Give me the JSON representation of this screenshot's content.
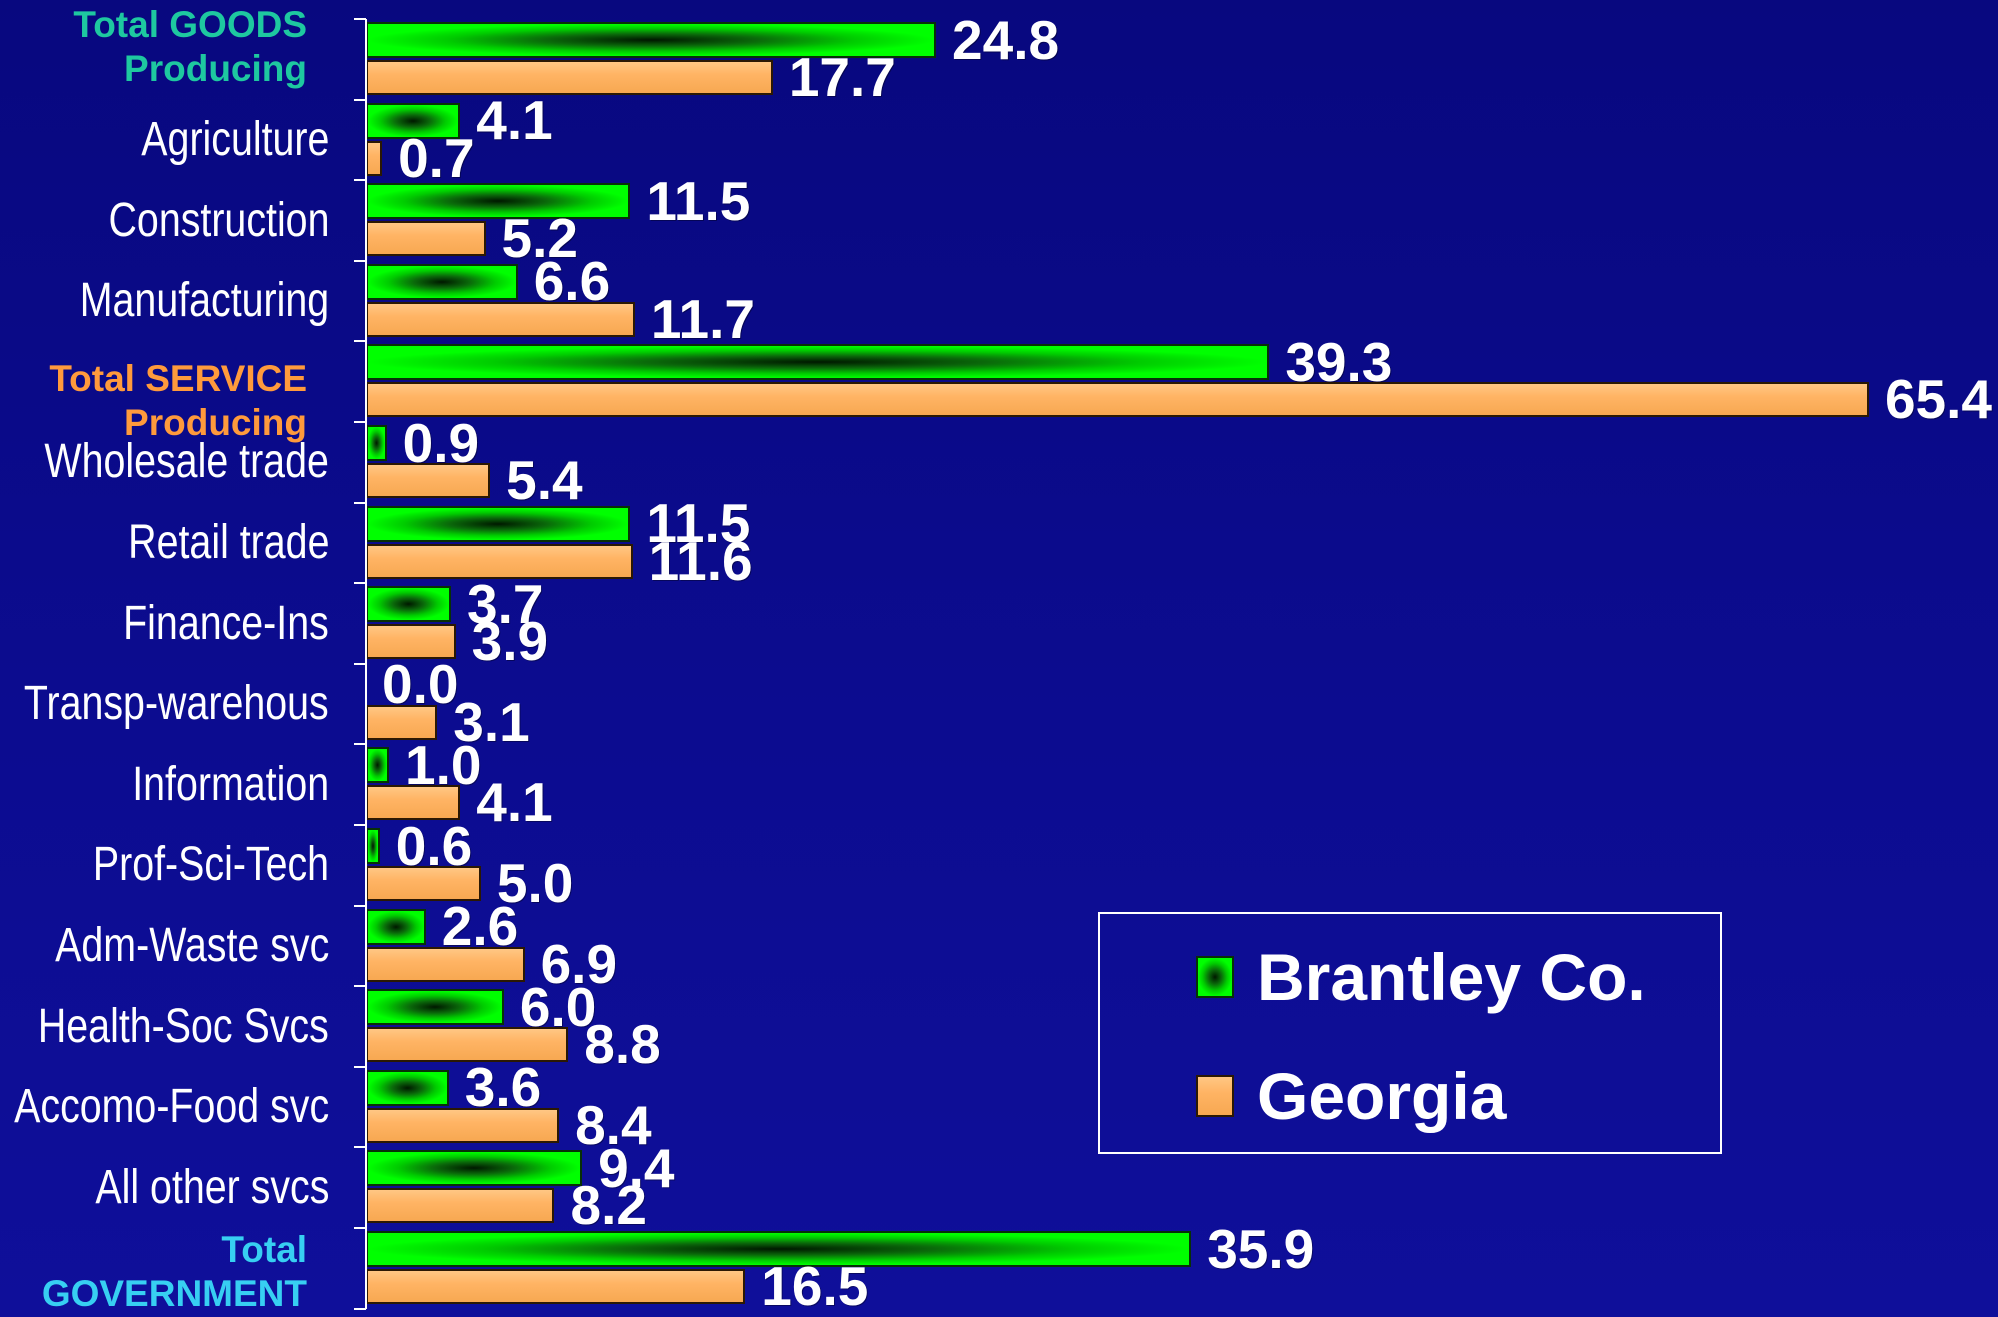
{
  "chart_data": {
    "type": "bar",
    "orientation": "horizontal",
    "categories": [
      "Total GOODS Producing",
      "Agriculture",
      "Construction",
      "Manufacturing",
      "Total SERVICE Producing",
      "Wholesale trade",
      "Retail trade",
      "Finance-Ins",
      "Transp-warehous",
      "Information",
      "Prof-Sci-Tech",
      "Adm-Waste svc",
      "Health-Soc Svcs",
      "Accomo-Food svc",
      "All other svcs",
      "Total GOVERNMENT"
    ],
    "emphasized_category_indices": [
      0,
      4,
      15
    ],
    "category_colors": [
      "#1ec8a0",
      "#ffffff",
      "#ffffff",
      "#ffffff",
      "#ff9a3c",
      "#ffffff",
      "#ffffff",
      "#ffffff",
      "#ffffff",
      "#ffffff",
      "#ffffff",
      "#ffffff",
      "#ffffff",
      "#ffffff",
      "#ffffff",
      "#37cff2"
    ],
    "series": [
      {
        "name": "Brantley Co.",
        "color": "#00ff00",
        "values": [
          24.8,
          4.1,
          11.5,
          6.6,
          39.3,
          0.9,
          11.5,
          3.7,
          0.0,
          1.0,
          0.6,
          2.6,
          6.0,
          3.6,
          9.4,
          35.9
        ],
        "labels": [
          "24.8",
          "4.1",
          "11.5",
          "6.6",
          "39.3",
          "0.9",
          "11.5",
          "3.7",
          "0.0",
          "1.0",
          "0.6",
          "2.6",
          "6.0",
          "3.6",
          "9.4",
          "35.9"
        ]
      },
      {
        "name": "Georgia",
        "color": "#ffb464",
        "values": [
          17.7,
          0.7,
          5.2,
          11.7,
          65.4,
          5.4,
          11.6,
          3.9,
          3.1,
          4.1,
          5.0,
          6.9,
          8.8,
          8.4,
          8.2,
          16.5
        ],
        "labels": [
          "17.7",
          "0.7",
          "5.2",
          "11.7",
          "65.4",
          "5.4",
          "11.6",
          "3.9",
          "3.1",
          "4.1",
          "5.0",
          "6.9",
          "8.8",
          "8.4",
          "8.2",
          "16.5"
        ]
      }
    ],
    "xlim": [
      0,
      71
    ],
    "grid": false,
    "legend": {
      "position": "lower-right",
      "boxed": true
    },
    "background": "#0b0b8c"
  }
}
